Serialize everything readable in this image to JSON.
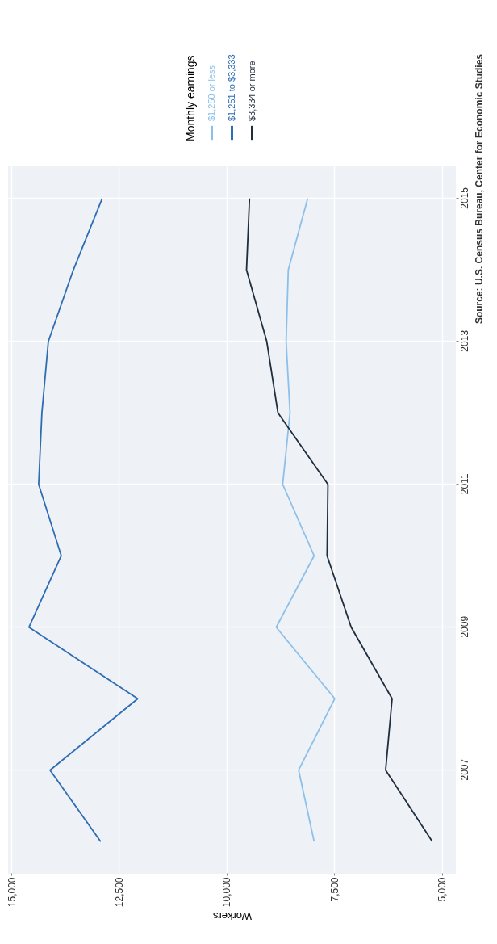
{
  "chart_data": {
    "type": "line",
    "xlabel": "Workers",
    "legend_title": "Monthly earnings",
    "legend": "top",
    "grid": true,
    "xlim": [
      15075,
      4680
    ],
    "xticks": [
      {
        "value": 15000,
        "label": "15,000"
      },
      {
        "value": 12500,
        "label": "12,500"
      },
      {
        "value": 10000,
        "label": "10,000"
      },
      {
        "value": 7500,
        "label": "7,500"
      },
      {
        "value": 5000,
        "label": "5,000"
      }
    ],
    "ylim": [
      2005.55,
      2015.45
    ],
    "yticks": [
      2007,
      2009,
      2011,
      2013,
      2015
    ],
    "series": [
      {
        "name": "$1,250 or less",
        "color": "#8cc0ea",
        "x": [
          7970,
          8330,
          7490,
          8850,
          7970,
          8700,
          8530,
          8620,
          8570,
          8120
        ],
        "values": [
          2006,
          2007,
          2008,
          2009,
          2010,
          2011,
          2012,
          2013,
          2014,
          2015
        ]
      },
      {
        "name": "$1,251 to $3,333",
        "color": "#2e6db4",
        "x": [
          12925,
          14100,
          12065,
          14590,
          13840,
          14365,
          14290,
          14140,
          13560,
          12890
        ],
        "values": [
          2006,
          2007,
          2008,
          2009,
          2010,
          2011,
          2012,
          2013,
          2014,
          2015
        ]
      },
      {
        "name": "$3,334 or more",
        "color": "#1f2d3d",
        "x": [
          5225,
          6310,
          6160,
          7110,
          7670,
          7650,
          8810,
          9070,
          9540,
          9470
        ],
        "values": [
          2006,
          2007,
          2008,
          2009,
          2010,
          2011,
          2012,
          2013,
          2014,
          2015
        ]
      }
    ],
    "annotations": [
      "Source: U.S. Census Bureau, Center for Economic Studies"
    ]
  }
}
